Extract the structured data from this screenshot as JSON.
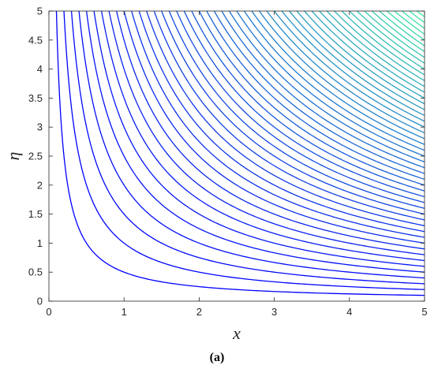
{
  "chart_data": {
    "type": "line",
    "title": "",
    "xlabel": "x",
    "ylabel": "η",
    "xlim": [
      0,
      5
    ],
    "ylim": [
      0,
      5
    ],
    "xticks": [
      "0",
      "1",
      "2",
      "3",
      "4",
      "5"
    ],
    "yticks": [
      "0",
      "0.5",
      "1",
      "1.5",
      "2",
      "2.5",
      "3",
      "3.5",
      "4",
      "4.5",
      "5"
    ],
    "grid": false,
    "series_form": "contour lines of x·η = c",
    "contour_levels": [
      0.5,
      1,
      1.5,
      2,
      2.5,
      3,
      3.5,
      4,
      4.5,
      5,
      5.5,
      6,
      6.5,
      7,
      7.5,
      8,
      8.5,
      9,
      9.5,
      10,
      10.5,
      11,
      11.5,
      12,
      12.5,
      13,
      13.5,
      14,
      14.5,
      15,
      15.5,
      16,
      16.5,
      17,
      17.5,
      18,
      18.5,
      19,
      19.5,
      20,
      20.5,
      21,
      21.5,
      22,
      22.5,
      23,
      23.5,
      24,
      24.5,
      25
    ],
    "colormap": [
      "#0000ff",
      "#3ff0a0"
    ]
  },
  "caption": "(a)"
}
